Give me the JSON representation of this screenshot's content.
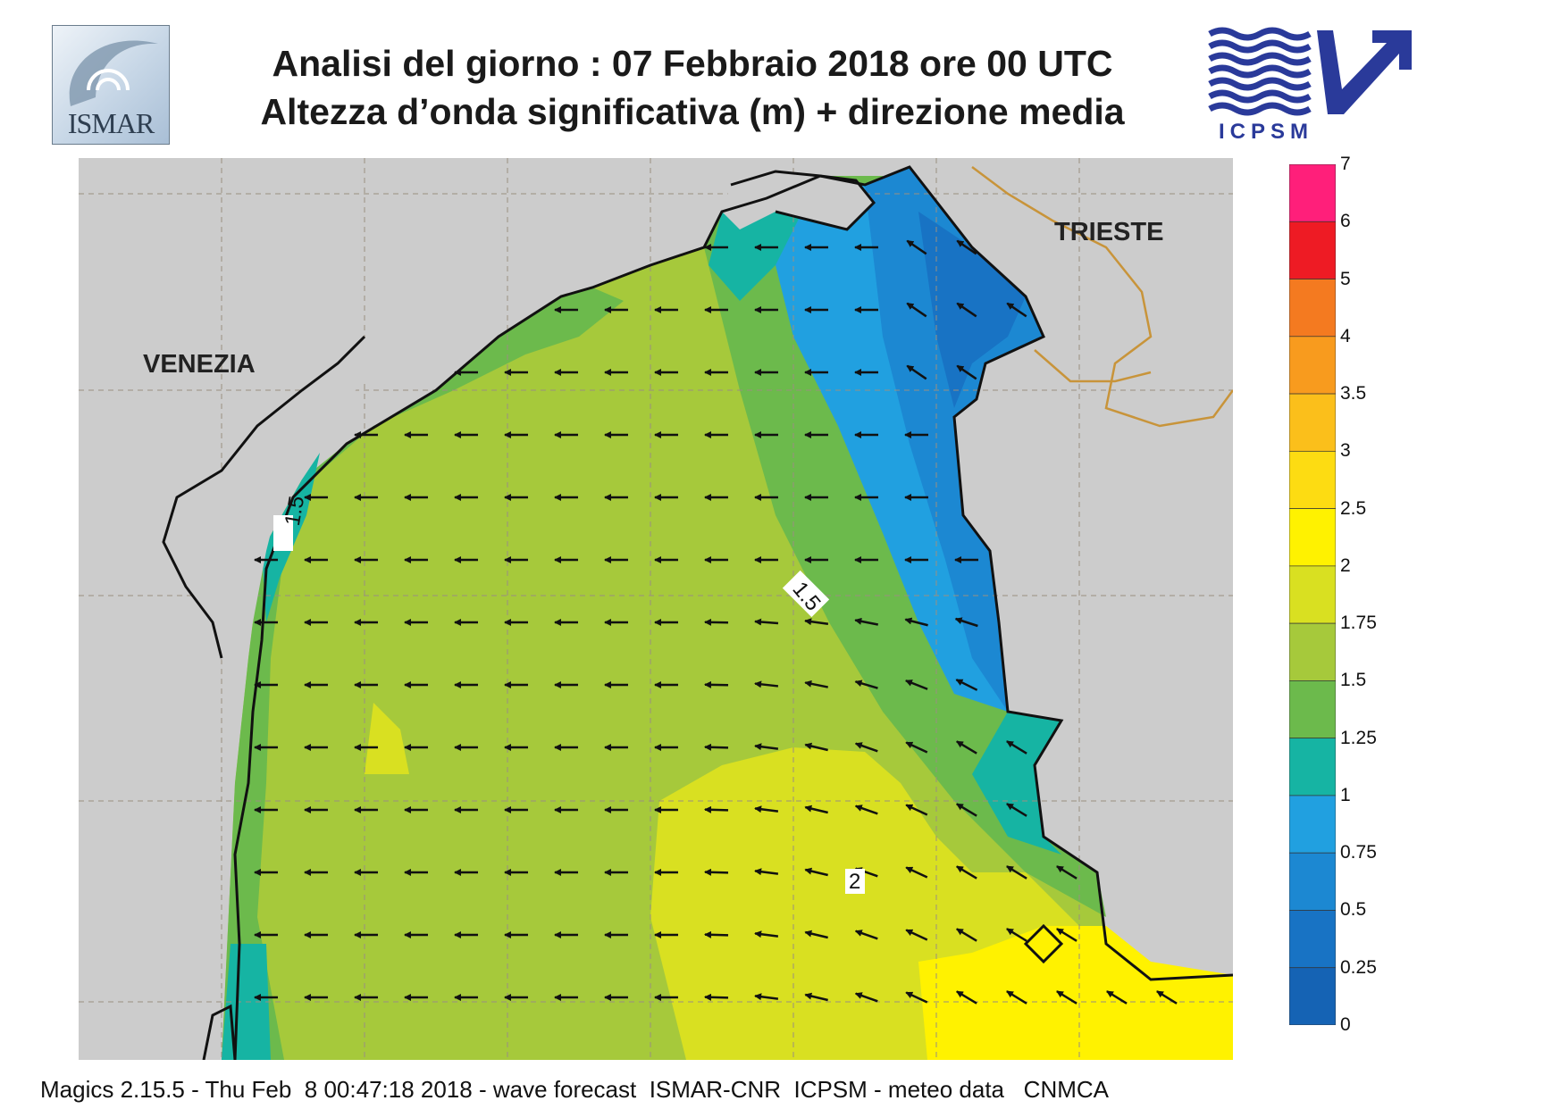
{
  "header": {
    "title_line1": "Analisi del giorno :  07  Febbraio 2018   ore 00 UTC",
    "title_line2": "Altezza d’onda significativa (m) + direzione media"
  },
  "logos": {
    "left": {
      "text": "ISMAR"
    },
    "right": {
      "text": "ICPSM"
    }
  },
  "map": {
    "cities": [
      "VENEZIA",
      "TRIESTE"
    ],
    "contour_labels": [
      "1.5",
      "1.5",
      "2"
    ],
    "wave_direction": "from east toward west, turning to north-west in the southern part",
    "colors": {
      "land": "#cccccc",
      "coastline": "#111111",
      "border": "#c8943a",
      "arrows": "#111111"
    }
  },
  "colorbar": {
    "labels": [
      "7",
      "6",
      "5",
      "4",
      "3.5",
      "3",
      "2.5",
      "2",
      "1.75",
      "1.5",
      "1.25",
      "1",
      "0.75",
      "0.5",
      "0.25",
      "0"
    ],
    "colors": [
      "#ff1f7a",
      "#ee1b24",
      "#f47a20",
      "#f89b1e",
      "#fbbf1b",
      "#fddc12",
      "#fff200",
      "#d9e021",
      "#a6c93b",
      "#6cba4c",
      "#16b4a3",
      "#21a0e0",
      "#1c88d2",
      "#1873c4",
      "#1563b4"
    ]
  },
  "footer": {
    "text": "Magics 2.15.5 - Thu Feb  8 00:47:18 2018 - wave forecast  ISMAR-CNR  ICPSM - meteo data   CNMCA"
  }
}
